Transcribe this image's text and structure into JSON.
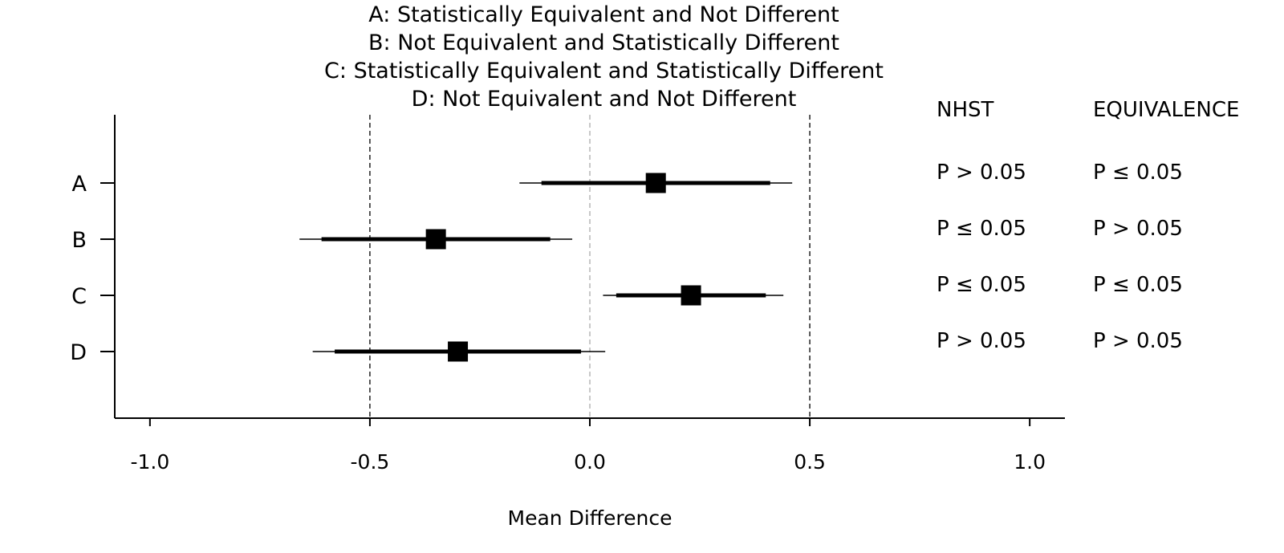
{
  "title_lines": [
    "A: Statistically Equivalent and Not Different",
    "B: Not Equivalent and Statistically Different",
    "C: Statistically Equivalent and Statistically Different",
    "D: Not Equivalent and Not Different"
  ],
  "chart_data": {
    "type": "forest",
    "xlabel": "Mean Difference",
    "xlim": [
      -1.08,
      1.08
    ],
    "xticks": [
      -1.0,
      -0.5,
      0.0,
      0.5,
      1.0
    ],
    "xtick_labels": [
      "-1.0",
      "-0.5",
      "0.0",
      "0.5",
      "1.0"
    ],
    "equivalence_bounds": [
      -0.5,
      0.5
    ],
    "null_line": 0.0,
    "rows": [
      {
        "label": "A",
        "estimate": 0.15,
        "ci_outer": [
          -0.16,
          0.46
        ],
        "ci_inner": [
          -0.11,
          0.41
        ],
        "nhst": "P > 0.05",
        "equivalence": "P ≤ 0.05"
      },
      {
        "label": "B",
        "estimate": -0.35,
        "ci_outer": [
          -0.66,
          -0.04
        ],
        "ci_inner": [
          -0.61,
          -0.09
        ],
        "nhst": "P ≤ 0.05",
        "equivalence": "P > 0.05"
      },
      {
        "label": "C",
        "estimate": 0.23,
        "ci_outer": [
          0.03,
          0.44
        ],
        "ci_inner": [
          0.06,
          0.4
        ],
        "nhst": "P ≤ 0.05",
        "equivalence": "P ≤ 0.05"
      },
      {
        "label": "D",
        "estimate": -0.3,
        "ci_outer": [
          -0.63,
          0.035
        ],
        "ci_inner": [
          -0.58,
          -0.02
        ],
        "nhst": "P > 0.05",
        "equivalence": "P > 0.05"
      }
    ],
    "table_headers": {
      "nhst": "NHST",
      "equivalence": "EQUIVALENCE"
    }
  }
}
